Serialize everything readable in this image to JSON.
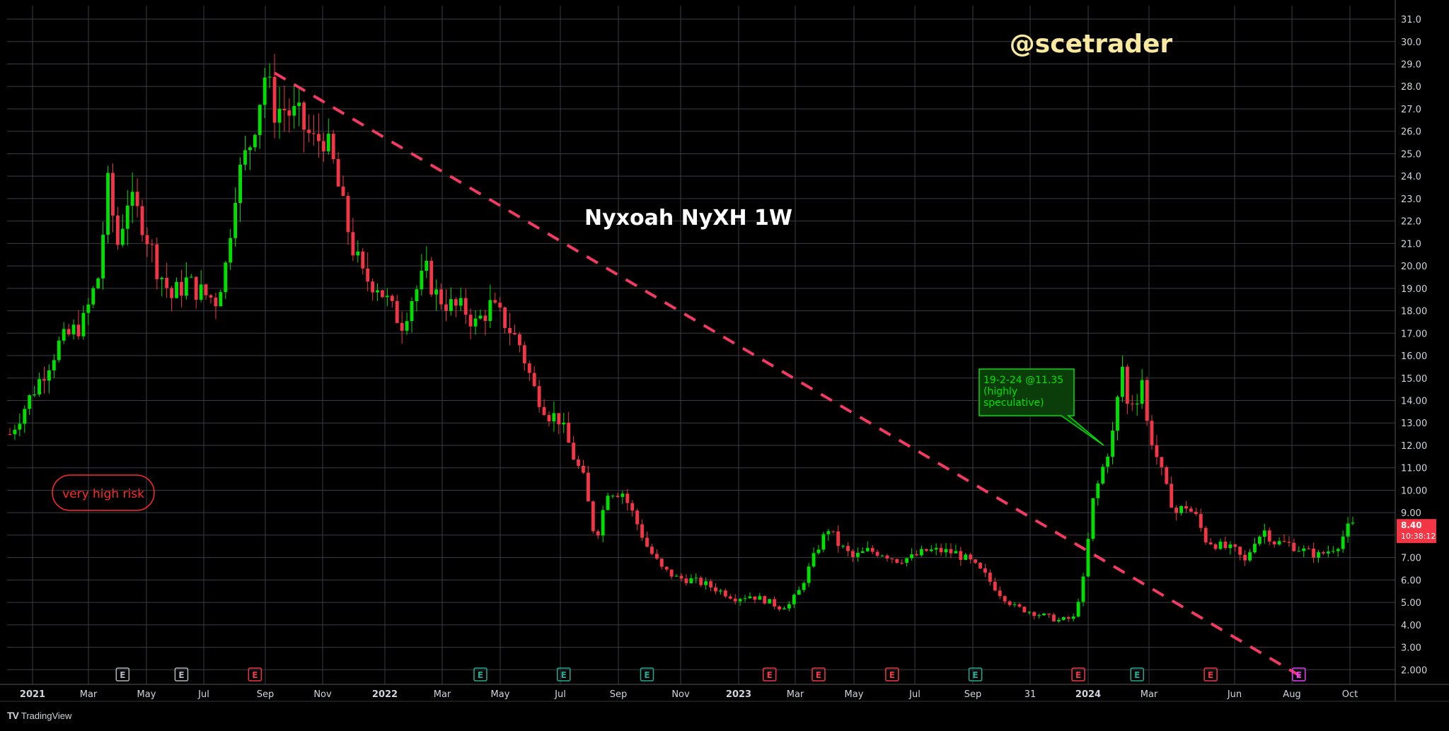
{
  "chart_data": {
    "type": "candlestick",
    "title": "Nyxoah NyXH 1W",
    "watermark": "@scetrader",
    "ylim": [
      1.6,
      31.6
    ],
    "y_ticks": [
      "31.0",
      "30.0",
      "29.0",
      "28.0",
      "27.0",
      "26.0",
      "25.0",
      "24.0",
      "23.0",
      "22.0",
      "21.0",
      "20.00",
      "19.00",
      "18.00",
      "17.00",
      "16.00",
      "15.00",
      "14.00",
      "13.00",
      "12.00",
      "11.00",
      "10.00",
      "9.00",
      "8.00",
      "7.00",
      "6.00",
      "5.00",
      "4.00",
      "3.00",
      "2.000"
    ],
    "x_ticks": [
      {
        "label": "2021",
        "bold": true
      },
      {
        "label": "Mar",
        "bold": false
      },
      {
        "label": "May",
        "bold": false
      },
      {
        "label": "Jul",
        "bold": false
      },
      {
        "label": "Sep",
        "bold": false
      },
      {
        "label": "Nov",
        "bold": false
      },
      {
        "label": "2022",
        "bold": true
      },
      {
        "label": "Mar",
        "bold": false
      },
      {
        "label": "May",
        "bold": false
      },
      {
        "label": "Jul",
        "bold": false
      },
      {
        "label": "Sep",
        "bold": false
      },
      {
        "label": "Nov",
        "bold": false
      },
      {
        "label": "2023",
        "bold": true
      },
      {
        "label": "Mar",
        "bold": false
      },
      {
        "label": "May",
        "bold": false
      },
      {
        "label": "Jul",
        "bold": false
      },
      {
        "label": "Sep",
        "bold": false
      },
      {
        "label": "31",
        "bold": false
      },
      {
        "label": "2024",
        "bold": true
      },
      {
        "label": "Mar",
        "bold": false
      },
      {
        "label": "Jun",
        "bold": false
      },
      {
        "label": "Aug",
        "bold": false
      },
      {
        "label": "Oct",
        "bold": false
      }
    ],
    "price_path": [
      [
        0,
        12.5
      ],
      [
        5,
        14.5
      ],
      [
        10,
        16.5
      ],
      [
        15,
        17.5
      ],
      [
        18,
        19.5
      ],
      [
        20,
        23.5
      ],
      [
        22,
        21
      ],
      [
        24,
        23
      ],
      [
        27,
        22
      ],
      [
        30,
        20
      ],
      [
        33,
        18.6
      ],
      [
        36,
        19.3
      ],
      [
        39,
        18.8
      ],
      [
        42,
        18.5
      ],
      [
        44,
        20
      ],
      [
        46,
        23.5
      ],
      [
        49,
        25.5
      ],
      [
        52,
        28.5
      ],
      [
        54,
        27
      ],
      [
        56,
        27
      ],
      [
        59,
        26.5
      ],
      [
        62,
        25.5
      ],
      [
        64,
        25.8
      ],
      [
        66,
        24.5
      ],
      [
        68,
        22.5
      ],
      [
        70,
        20.8
      ],
      [
        72,
        19.5
      ],
      [
        75,
        19.2
      ],
      [
        78,
        18
      ],
      [
        80,
        17.5
      ],
      [
        82,
        18.6
      ],
      [
        85,
        19.7
      ],
      [
        87,
        18.7
      ],
      [
        90,
        18.2
      ],
      [
        93,
        18
      ],
      [
        95,
        17.4
      ],
      [
        98,
        18.2
      ],
      [
        101,
        17.5
      ],
      [
        104,
        16.5
      ],
      [
        107,
        14.5
      ],
      [
        110,
        13.4
      ],
      [
        112,
        13.2
      ],
      [
        115,
        11.5
      ],
      [
        117,
        10.5
      ],
      [
        119,
        8.3
      ],
      [
        120,
        8.2
      ],
      [
        122,
        10
      ],
      [
        125,
        9.9
      ],
      [
        127,
        9
      ],
      [
        130,
        7.5
      ],
      [
        133,
        6.5
      ],
      [
        136,
        6.1
      ],
      [
        139,
        6
      ],
      [
        142,
        5.8
      ],
      [
        144,
        5.6
      ],
      [
        146,
        5.4
      ],
      [
        148,
        5.2
      ],
      [
        151,
        5.3
      ],
      [
        154,
        5.1
      ],
      [
        157,
        4.8
      ],
      [
        159,
        4.9
      ],
      [
        161,
        5.5
      ],
      [
        163,
        6.5
      ],
      [
        165,
        7.5
      ],
      [
        167,
        8.3
      ],
      [
        169,
        7.6
      ],
      [
        172,
        7
      ],
      [
        175,
        7.3
      ],
      [
        178,
        7.2
      ],
      [
        181,
        6.9
      ],
      [
        184,
        7
      ],
      [
        187,
        7.3
      ],
      [
        190,
        7.3
      ],
      [
        193,
        7.2
      ],
      [
        196,
        6.8
      ],
      [
        199,
        6.2
      ],
      [
        202,
        5.4
      ],
      [
        205,
        4.8
      ],
      [
        208,
        4.6
      ],
      [
        211,
        4.4
      ],
      [
        214,
        4.2
      ],
      [
        217,
        4.3
      ],
      [
        219,
        6
      ],
      [
        221,
        9.5
      ],
      [
        223,
        11
      ],
      [
        225,
        12.5
      ],
      [
        227,
        15.5
      ],
      [
        228,
        13.8
      ],
      [
        230,
        14.2
      ],
      [
        231,
        15
      ],
      [
        232,
        13
      ],
      [
        234,
        11.5
      ],
      [
        236,
        10
      ],
      [
        238,
        9
      ],
      [
        240,
        9.3
      ],
      [
        242,
        8.8
      ],
      [
        244,
        7.8
      ],
      [
        247,
        7.5
      ],
      [
        250,
        7.3
      ],
      [
        252,
        6.8
      ],
      [
        254,
        7.8
      ],
      [
        256,
        8.2
      ],
      [
        258,
        7.7
      ],
      [
        261,
        7.6
      ],
      [
        264,
        7.3
      ],
      [
        267,
        7.1
      ],
      [
        269,
        7.3
      ],
      [
        271,
        7.6
      ],
      [
        273,
        8.3
      ],
      [
        274,
        8.4
      ]
    ],
    "trendline": {
      "from": {
        "week": 54,
        "price": 28.6
      },
      "to": {
        "week": 265,
        "price": 1.5
      },
      "color": "#f23a63",
      "dashed": true
    },
    "last_price": {
      "value": "8.40",
      "countdown": "10:38:12"
    },
    "earnings_markers": [
      {
        "week": 23,
        "type": "E",
        "color": "#b2b5be"
      },
      {
        "week": 35,
        "type": "E",
        "color": "#b2b5be"
      },
      {
        "week": 50,
        "type": "E",
        "color": "#f23645"
      },
      {
        "week": 96,
        "type": "E",
        "color": "#22ab94"
      },
      {
        "week": 113,
        "type": "E",
        "color": "#22ab94"
      },
      {
        "week": 130,
        "type": "E",
        "color": "#22ab94"
      },
      {
        "week": 155,
        "type": "E",
        "color": "#f23645"
      },
      {
        "week": 165,
        "type": "E",
        "color": "#f23645"
      },
      {
        "week": 180,
        "type": "E",
        "color": "#f23645"
      },
      {
        "week": 197,
        "type": "E",
        "color": "#22ab94"
      },
      {
        "week": 218,
        "type": "E",
        "color": "#f23645"
      },
      {
        "week": 230,
        "type": "E",
        "color": "#22ab94"
      },
      {
        "week": 245,
        "type": "E",
        "color": "#f23645"
      },
      {
        "week": 263,
        "type": "E",
        "color": "#e040fb"
      }
    ],
    "annotations": [
      {
        "text_lines": [
          "19-2-24 @11.35",
          "(highly",
          "speculative)"
        ],
        "color": "#00e000",
        "points_to_week": 209,
        "points_to_price": 11.6
      },
      {
        "text": "very high risk",
        "color": "#ff2a2a"
      }
    ],
    "colors": {
      "up": "#26a69a",
      "up_bright": "#00e000",
      "down": "#f23645",
      "grid": "#3a3d45",
      "axis_text": "#d1d4dc",
      "background": "#000000",
      "watermark": "#f8e8a0"
    },
    "grid": true
  },
  "branding": {
    "logo": "TV",
    "name": "TradingView"
  }
}
